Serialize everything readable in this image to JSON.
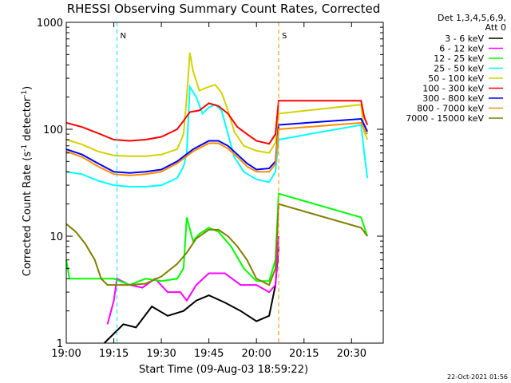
{
  "chart_data": {
    "type": "line",
    "title": "RHESSI Observing Summary Count Rates, Corrected",
    "xlabel": "Start Time (09-Aug-03 18:59:22)",
    "ylabel": "Corrected Count Rate (s⁻¹ detector⁻¹)",
    "ylabel_main": "Corrected Count Rate (s",
    "ylabel_sup1": "-1",
    "ylabel_mid": " detector",
    "ylabel_sup2": "-1",
    "ylabel_end": ")",
    "y_scale": "log",
    "ylim": [
      1,
      1000
    ],
    "xlim": [
      "19:00",
      "20:40"
    ],
    "x_tick_labels": [
      "19:00",
      "19:15",
      "19:30",
      "19:45",
      "20:00",
      "20:15",
      "20:30"
    ],
    "y_tick_labels": [
      "1",
      "10",
      "100",
      "1000"
    ],
    "legend_header": [
      "Det 1,3,4,5,6,9,",
      "Att 0"
    ],
    "legend_placement": "right",
    "footer_date": "22-Oct-2021 01:56",
    "flags": [
      {
        "label": "N",
        "color": "#00e5ee",
        "at": "19:16"
      },
      {
        "label": "S",
        "color": "#ff8c00",
        "at": "20:07"
      }
    ],
    "series": [
      {
        "name": "3 - 6 keV",
        "color": "#000000",
        "points": [
          [
            "19:12",
            1.0
          ],
          [
            "19:18",
            1.5
          ],
          [
            "19:22",
            1.4
          ],
          [
            "19:27",
            2.2
          ],
          [
            "19:32",
            1.8
          ],
          [
            "19:37",
            2.0
          ],
          [
            "19:41",
            2.5
          ],
          [
            "19:45",
            2.8
          ],
          [
            "19:50",
            2.4
          ],
          [
            "19:55",
            2.0
          ],
          [
            "20:00",
            1.6
          ],
          [
            "20:04",
            1.8
          ],
          [
            "20:06",
            3.5
          ],
          [
            "20:07",
            8.0
          ]
        ]
      },
      {
        "name": "6 - 12 keV",
        "color": "#ff00ff",
        "points": [
          [
            "19:13",
            1.5
          ],
          [
            "19:15",
            2.5
          ],
          [
            "19:16",
            4.0
          ],
          [
            "19:20",
            3.5
          ],
          [
            "19:24",
            3.3
          ],
          [
            "19:28",
            4.0
          ],
          [
            "19:32",
            3.0
          ],
          [
            "19:36",
            3.0
          ],
          [
            "19:38",
            2.5
          ],
          [
            "19:41",
            3.5
          ],
          [
            "19:45",
            4.5
          ],
          [
            "19:50",
            4.5
          ],
          [
            "19:55",
            3.5
          ],
          [
            "20:00",
            3.5
          ],
          [
            "20:04",
            3.0
          ],
          [
            "20:06",
            3.5
          ],
          [
            "20:07",
            10.0
          ]
        ]
      },
      {
        "name": "12 - 25 keV",
        "color": "#00ff00",
        "points": [
          [
            "19:00",
            6.0
          ],
          [
            "19:01",
            4.0
          ],
          [
            "19:05",
            4.0
          ],
          [
            "19:10",
            4.0
          ],
          [
            "19:15",
            4.0
          ],
          [
            "19:20",
            3.5
          ],
          [
            "19:25",
            4.0
          ],
          [
            "19:30",
            3.8
          ],
          [
            "19:35",
            4.0
          ],
          [
            "19:37",
            5.0
          ],
          [
            "19:38",
            15.0
          ],
          [
            "19:40",
            9.0
          ],
          [
            "19:42",
            10.5
          ],
          [
            "19:45",
            12.0
          ],
          [
            "19:48",
            11.0
          ],
          [
            "19:52",
            8.0
          ],
          [
            "19:56",
            5.0
          ],
          [
            "20:00",
            3.8
          ],
          [
            "20:04",
            3.8
          ],
          [
            "20:06",
            6.0
          ],
          [
            "20:07",
            25.0
          ],
          [
            "20:33",
            15.0
          ],
          [
            "20:35",
            10.0
          ]
        ]
      },
      {
        "name": "25 - 50 keV",
        "color": "#00ffff",
        "points": [
          [
            "19:00",
            40.0
          ],
          [
            "19:05",
            38.0
          ],
          [
            "19:10",
            33.0
          ],
          [
            "19:15",
            30.0
          ],
          [
            "19:20",
            29.0
          ],
          [
            "19:25",
            29.0
          ],
          [
            "19:30",
            30.0
          ],
          [
            "19:35",
            35.0
          ],
          [
            "19:37",
            45.0
          ],
          [
            "19:38",
            60.0
          ],
          [
            "19:39",
            250.0
          ],
          [
            "19:41",
            200.0
          ],
          [
            "19:43",
            140.0
          ],
          [
            "19:45",
            160.0
          ],
          [
            "19:47",
            170.0
          ],
          [
            "19:49",
            150.0
          ],
          [
            "19:51",
            90.0
          ],
          [
            "19:53",
            55.0
          ],
          [
            "19:56",
            40.0
          ],
          [
            "20:00",
            34.0
          ],
          [
            "20:04",
            32.0
          ],
          [
            "20:06",
            40.0
          ],
          [
            "20:07",
            80.0
          ],
          [
            "20:33",
            110.0
          ],
          [
            "20:34",
            60.0
          ],
          [
            "20:35",
            35.0
          ]
        ]
      },
      {
        "name": "50 - 100 keV",
        "color": "#d2d200",
        "points": [
          [
            "19:00",
            80.0
          ],
          [
            "19:05",
            72.0
          ],
          [
            "19:10",
            62.0
          ],
          [
            "19:15",
            57.0
          ],
          [
            "19:20",
            56.0
          ],
          [
            "19:25",
            56.0
          ],
          [
            "19:30",
            58.0
          ],
          [
            "19:35",
            65.0
          ],
          [
            "19:37",
            90.0
          ],
          [
            "19:38",
            200.0
          ],
          [
            "19:39",
            520.0
          ],
          [
            "19:40",
            350.0
          ],
          [
            "19:42",
            230.0
          ],
          [
            "19:45",
            250.0
          ],
          [
            "19:47",
            260.0
          ],
          [
            "19:49",
            220.0
          ],
          [
            "19:51",
            150.0
          ],
          [
            "19:53",
            95.0
          ],
          [
            "19:56",
            70.0
          ],
          [
            "20:00",
            63.0
          ],
          [
            "20:04",
            60.0
          ],
          [
            "20:06",
            75.0
          ],
          [
            "20:07",
            140.0
          ],
          [
            "20:33",
            170.0
          ],
          [
            "20:34",
            95.0
          ],
          [
            "20:35",
            80.0
          ]
        ]
      },
      {
        "name": "100 - 300 keV",
        "color": "#ff0000",
        "points": [
          [
            "19:00",
            115.0
          ],
          [
            "19:05",
            105.0
          ],
          [
            "19:10",
            92.0
          ],
          [
            "19:15",
            80.0
          ],
          [
            "19:20",
            78.0
          ],
          [
            "19:25",
            80.0
          ],
          [
            "19:30",
            85.0
          ],
          [
            "19:35",
            100.0
          ],
          [
            "19:37",
            120.0
          ],
          [
            "19:39",
            145.0
          ],
          [
            "19:42",
            150.0
          ],
          [
            "19:45",
            175.0
          ],
          [
            "19:48",
            165.0
          ],
          [
            "19:51",
            140.0
          ],
          [
            "19:54",
            105.0
          ],
          [
            "19:57",
            90.0
          ],
          [
            "20:00",
            78.0
          ],
          [
            "20:04",
            73.0
          ],
          [
            "20:06",
            90.0
          ],
          [
            "20:07",
            185.0
          ],
          [
            "20:33",
            185.0
          ],
          [
            "20:34",
            130.0
          ],
          [
            "20:35",
            110.0
          ]
        ]
      },
      {
        "name": "300 - 800 keV",
        "color": "#0000ff",
        "points": [
          [
            "19:00",
            65.0
          ],
          [
            "19:05",
            58.0
          ],
          [
            "19:10",
            48.0
          ],
          [
            "19:15",
            40.0
          ],
          [
            "19:20",
            39.0
          ],
          [
            "19:25",
            40.0
          ],
          [
            "19:30",
            42.0
          ],
          [
            "19:35",
            50.0
          ],
          [
            "19:40",
            65.0
          ],
          [
            "19:45",
            78.0
          ],
          [
            "19:48",
            78.0
          ],
          [
            "19:51",
            70.0
          ],
          [
            "19:54",
            58.0
          ],
          [
            "19:57",
            48.0
          ],
          [
            "20:00",
            42.0
          ],
          [
            "20:04",
            43.0
          ],
          [
            "20:06",
            50.0
          ],
          [
            "20:07",
            110.0
          ],
          [
            "20:33",
            125.0
          ],
          [
            "20:34",
            110.0
          ],
          [
            "20:35",
            95.0
          ]
        ]
      },
      {
        "name": "800 - 7000 keV",
        "color": "#ff8c00",
        "points": [
          [
            "19:00",
            62.0
          ],
          [
            "19:05",
            55.0
          ],
          [
            "19:10",
            45.0
          ],
          [
            "19:15",
            38.0
          ],
          [
            "19:20",
            37.0
          ],
          [
            "19:25",
            38.0
          ],
          [
            "19:30",
            40.0
          ],
          [
            "19:35",
            48.0
          ],
          [
            "19:40",
            62.0
          ],
          [
            "19:45",
            74.0
          ],
          [
            "19:48",
            74.0
          ],
          [
            "19:51",
            66.0
          ],
          [
            "19:54",
            55.0
          ],
          [
            "19:57",
            45.0
          ],
          [
            "20:00",
            40.0
          ],
          [
            "20:04",
            40.0
          ],
          [
            "20:06",
            47.0
          ],
          [
            "20:07",
            100.0
          ],
          [
            "20:33",
            115.0
          ],
          [
            "20:34",
            100.0
          ],
          [
            "20:35",
            90.0
          ]
        ]
      },
      {
        "name": "7000 - 15000 keV",
        "color": "#808000",
        "points": [
          [
            "19:00",
            13.0
          ],
          [
            "19:03",
            11.0
          ],
          [
            "19:06",
            8.5
          ],
          [
            "19:09",
            6.0
          ],
          [
            "19:11",
            4.0
          ],
          [
            "19:13",
            3.5
          ],
          [
            "19:20",
            3.5
          ],
          [
            "19:25",
            3.6
          ],
          [
            "19:30",
            4.2
          ],
          [
            "19:35",
            5.5
          ],
          [
            "19:38",
            7.0
          ],
          [
            "19:41",
            9.5
          ],
          [
            "19:45",
            11.5
          ],
          [
            "19:48",
            11.5
          ],
          [
            "19:51",
            10.0
          ],
          [
            "19:54",
            8.0
          ],
          [
            "19:57",
            6.0
          ],
          [
            "20:00",
            4.0
          ],
          [
            "20:04",
            3.5
          ],
          [
            "20:06",
            5.0
          ],
          [
            "20:07",
            20.0
          ],
          [
            "20:33",
            12.0
          ],
          [
            "20:34",
            11.0
          ],
          [
            "20:35",
            10.0
          ]
        ]
      }
    ]
  }
}
